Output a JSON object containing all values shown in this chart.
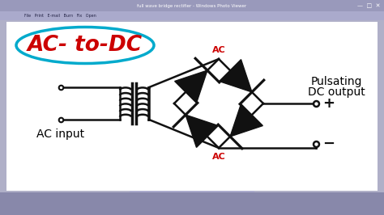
{
  "titlebar_color": "#9999bb",
  "toolbar_color": "#aaaacc",
  "taskbar_color": "#8888aa",
  "paper_color": "#ffffff",
  "main_bg": "#b0b0c8",
  "circuit_color": "#111111",
  "ac_to_dc_text": "AC- to-DC",
  "ac_to_dc_color": "#cc0000",
  "ellipse_color": "#00aacc",
  "ac_input_text": "AC input",
  "pulsating_line1": "Pulsating",
  "pulsating_line2": "DC output",
  "ac_label_color": "#cc0000",
  "plus_minus_color": "#111111",
  "diode_size": 0.38
}
